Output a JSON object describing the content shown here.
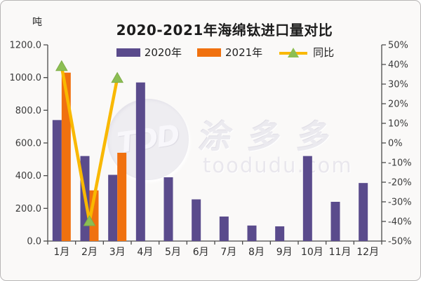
{
  "card": {
    "title": "2020-2021年海绵钛进口量对比"
  },
  "watermark": {
    "logo_text": "TDD",
    "brand_text": "涂多多",
    "domain_text": "toodudu.com"
  },
  "chart_data": {
    "type": "bar",
    "subtype": "combo-bar-line-dual-axis",
    "title": "2020-2021年海绵钛进口量对比",
    "categories": [
      "1月",
      "2月",
      "3月",
      "4月",
      "5月",
      "6月",
      "7月",
      "8月",
      "9月",
      "10月",
      "11月",
      "12月"
    ],
    "series": [
      {
        "name": "2020年",
        "type": "bar",
        "axis": "left",
        "color": "#5A4B8C",
        "values": [
          740,
          520,
          405,
          970,
          390,
          255,
          150,
          95,
          90,
          520,
          240,
          355
        ]
      },
      {
        "name": "2021年",
        "type": "bar",
        "axis": "left",
        "color": "#F0710F",
        "values": [
          1030,
          310,
          540,
          null,
          null,
          null,
          null,
          null,
          null,
          null,
          null,
          null
        ]
      },
      {
        "name": "同比",
        "type": "line",
        "axis": "right",
        "color": "#F9B800",
        "marker": "triangle-up",
        "marker_color": "#8CBE53",
        "values": [
          39,
          -40,
          33,
          null,
          null,
          null,
          null,
          null,
          null,
          null,
          null,
          null
        ]
      }
    ],
    "left_axis": {
      "label": "吨",
      "min": 0,
      "max": 1200,
      "tick_labels": [
        "0.0",
        "200.0",
        "400.0",
        "600.0",
        "800.0",
        "1000.0",
        "1200.0"
      ]
    },
    "right_axis": {
      "min": -50,
      "max": 50,
      "suffix": "%",
      "tick_labels": [
        "-50%",
        "-40%",
        "-30%",
        "-20%",
        "-10%",
        "0%",
        "10%",
        "20%",
        "30%",
        "40%",
        "50%"
      ]
    },
    "legend_position": "top",
    "grid": false
  }
}
